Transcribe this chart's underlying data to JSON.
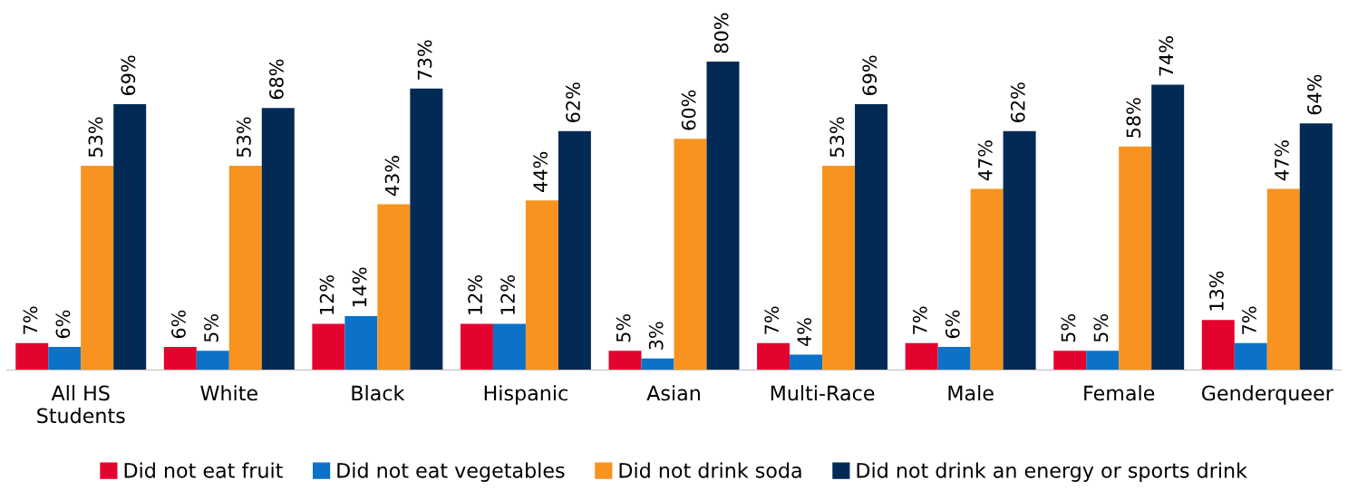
{
  "chart_data": {
    "type": "bar",
    "categories": [
      "All HS\nStudents",
      "White",
      "Black",
      "Hispanic",
      "Asian",
      "Multi-Race",
      "Male",
      "Female",
      "Genderqueer"
    ],
    "series": [
      {
        "name": "Did not eat fruit",
        "color": "#e4032e",
        "values": [
          7,
          6,
          12,
          12,
          5,
          7,
          7,
          5,
          13
        ],
        "value_labels": [
          "7%",
          "6%",
          "12%",
          "12%",
          "5%",
          "7%",
          "7%",
          "5%",
          "13%"
        ]
      },
      {
        "name": "Did not eat vegetables",
        "color": "#0b72c8",
        "values": [
          6,
          5,
          14,
          12,
          3,
          4,
          6,
          5,
          7
        ],
        "value_labels": [
          "6%",
          "5%",
          "14%",
          "12%",
          "3%",
          "4%",
          "6%",
          "5%",
          "7%"
        ]
      },
      {
        "name": "Did not drink soda",
        "color": "#f7931e",
        "values": [
          53,
          53,
          43,
          44,
          60,
          53,
          47,
          58,
          47
        ],
        "value_labels": [
          "53%",
          "53%",
          "43%",
          "44%",
          "60%",
          "53%",
          "47%",
          "58%",
          "47%"
        ]
      },
      {
        "name": "Did not drink an energy or sports drink",
        "color": "#022a55",
        "values": [
          69,
          68,
          73,
          62,
          80,
          69,
          62,
          74,
          64
        ],
        "value_labels": [
          "69%",
          "68%",
          "73%",
          "62%",
          "80%",
          "69%",
          "62%",
          "74%",
          "64%"
        ]
      }
    ],
    "legend": "bottom",
    "grid": false
  }
}
